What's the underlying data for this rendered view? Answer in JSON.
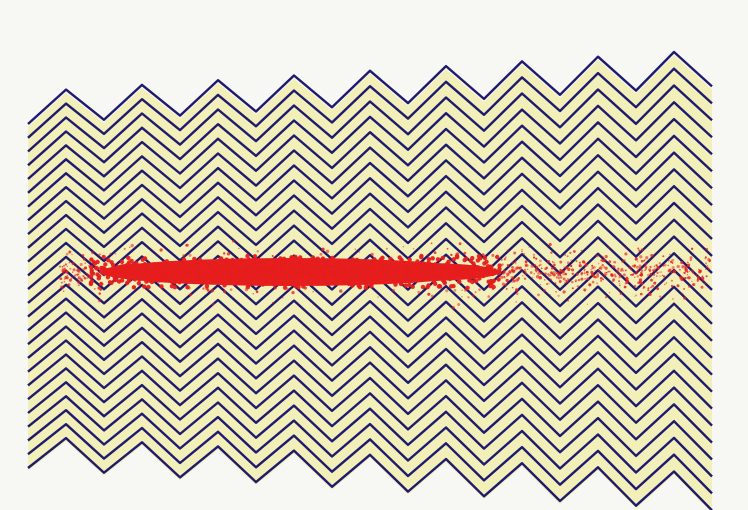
{
  "artwork": {
    "paper_color": "#f7f7f4",
    "border_color": "#ffffff",
    "wave_line_color": "#1f1a6e",
    "wave_fill_color": "#f2f0b8",
    "scatter_color": "#e61e1e",
    "wave_line_count": 26,
    "wave_period_count": 9
  }
}
